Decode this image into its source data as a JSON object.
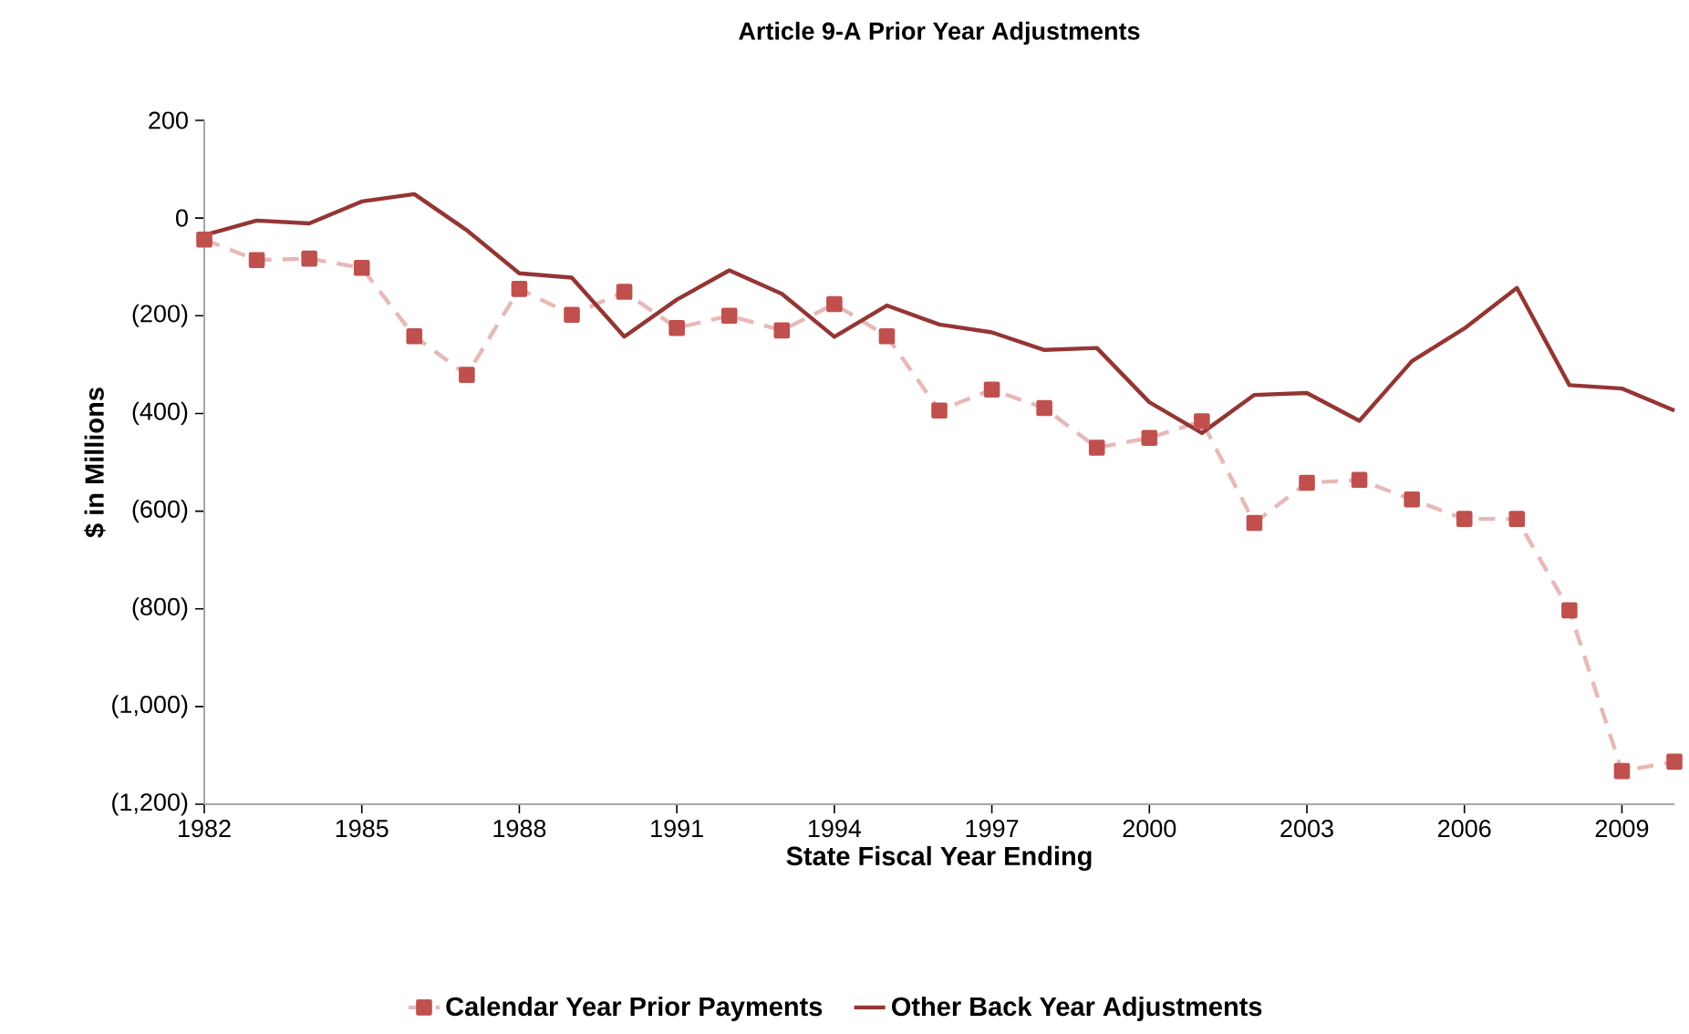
{
  "chart_data": {
    "type": "line",
    "title": "Article 9-A Prior Year Adjustments",
    "xlabel": "State Fiscal Year Ending",
    "ylabel": "$ in Millions",
    "x": [
      1982,
      1983,
      1984,
      1985,
      1986,
      1987,
      1988,
      1989,
      1990,
      1991,
      1992,
      1993,
      1994,
      1995,
      1996,
      1997,
      1998,
      1999,
      2000,
      2001,
      2002,
      2003,
      2004,
      2005,
      2006,
      2007,
      2008,
      2009,
      2010
    ],
    "series": [
      {
        "name": "Calendar Year Prior Payments",
        "color": "#c0504d",
        "marker": "square",
        "line_style": "dashed",
        "values": [
          -44,
          -86,
          -83,
          -102,
          -242,
          -321,
          -145,
          -198,
          -151,
          -225,
          -200,
          -230,
          -176,
          -242,
          -394,
          -351,
          -389,
          -470,
          -450,
          -416,
          -624,
          -542,
          -536,
          -576,
          -616,
          -616,
          -803,
          -1132,
          -1113
        ]
      },
      {
        "name": "Other Back Year Adjustments",
        "color": "#943634",
        "marker": "none",
        "line_style": "solid",
        "values": [
          -35,
          -5,
          -11,
          34,
          49,
          -25,
          -113,
          -122,
          -243,
          -167,
          -107,
          -155,
          -243,
          -179,
          -218,
          -234,
          -270,
          -266,
          -377,
          -440,
          -362,
          -358,
          -415,
          -293,
          -226,
          -143,
          -342,
          -349,
          -394
        ]
      }
    ],
    "xlim": [
      1982,
      2010
    ],
    "ylim": [
      -1200,
      200
    ],
    "xticks": [
      1982,
      1985,
      1988,
      1991,
      1994,
      1997,
      2000,
      2003,
      2006,
      2009
    ],
    "yticks": [
      200,
      0,
      {
        "value": -200,
        "label": "(200)"
      },
      {
        "value": -400,
        "label": "(400)"
      },
      {
        "value": -600,
        "label": "(600)"
      },
      {
        "value": -800,
        "label": "(800)"
      },
      {
        "value": -1000,
        "label": "(1,000)"
      },
      {
        "value": -1200,
        "label": "(1,200)"
      }
    ],
    "grid": false,
    "legend": "bottom"
  }
}
